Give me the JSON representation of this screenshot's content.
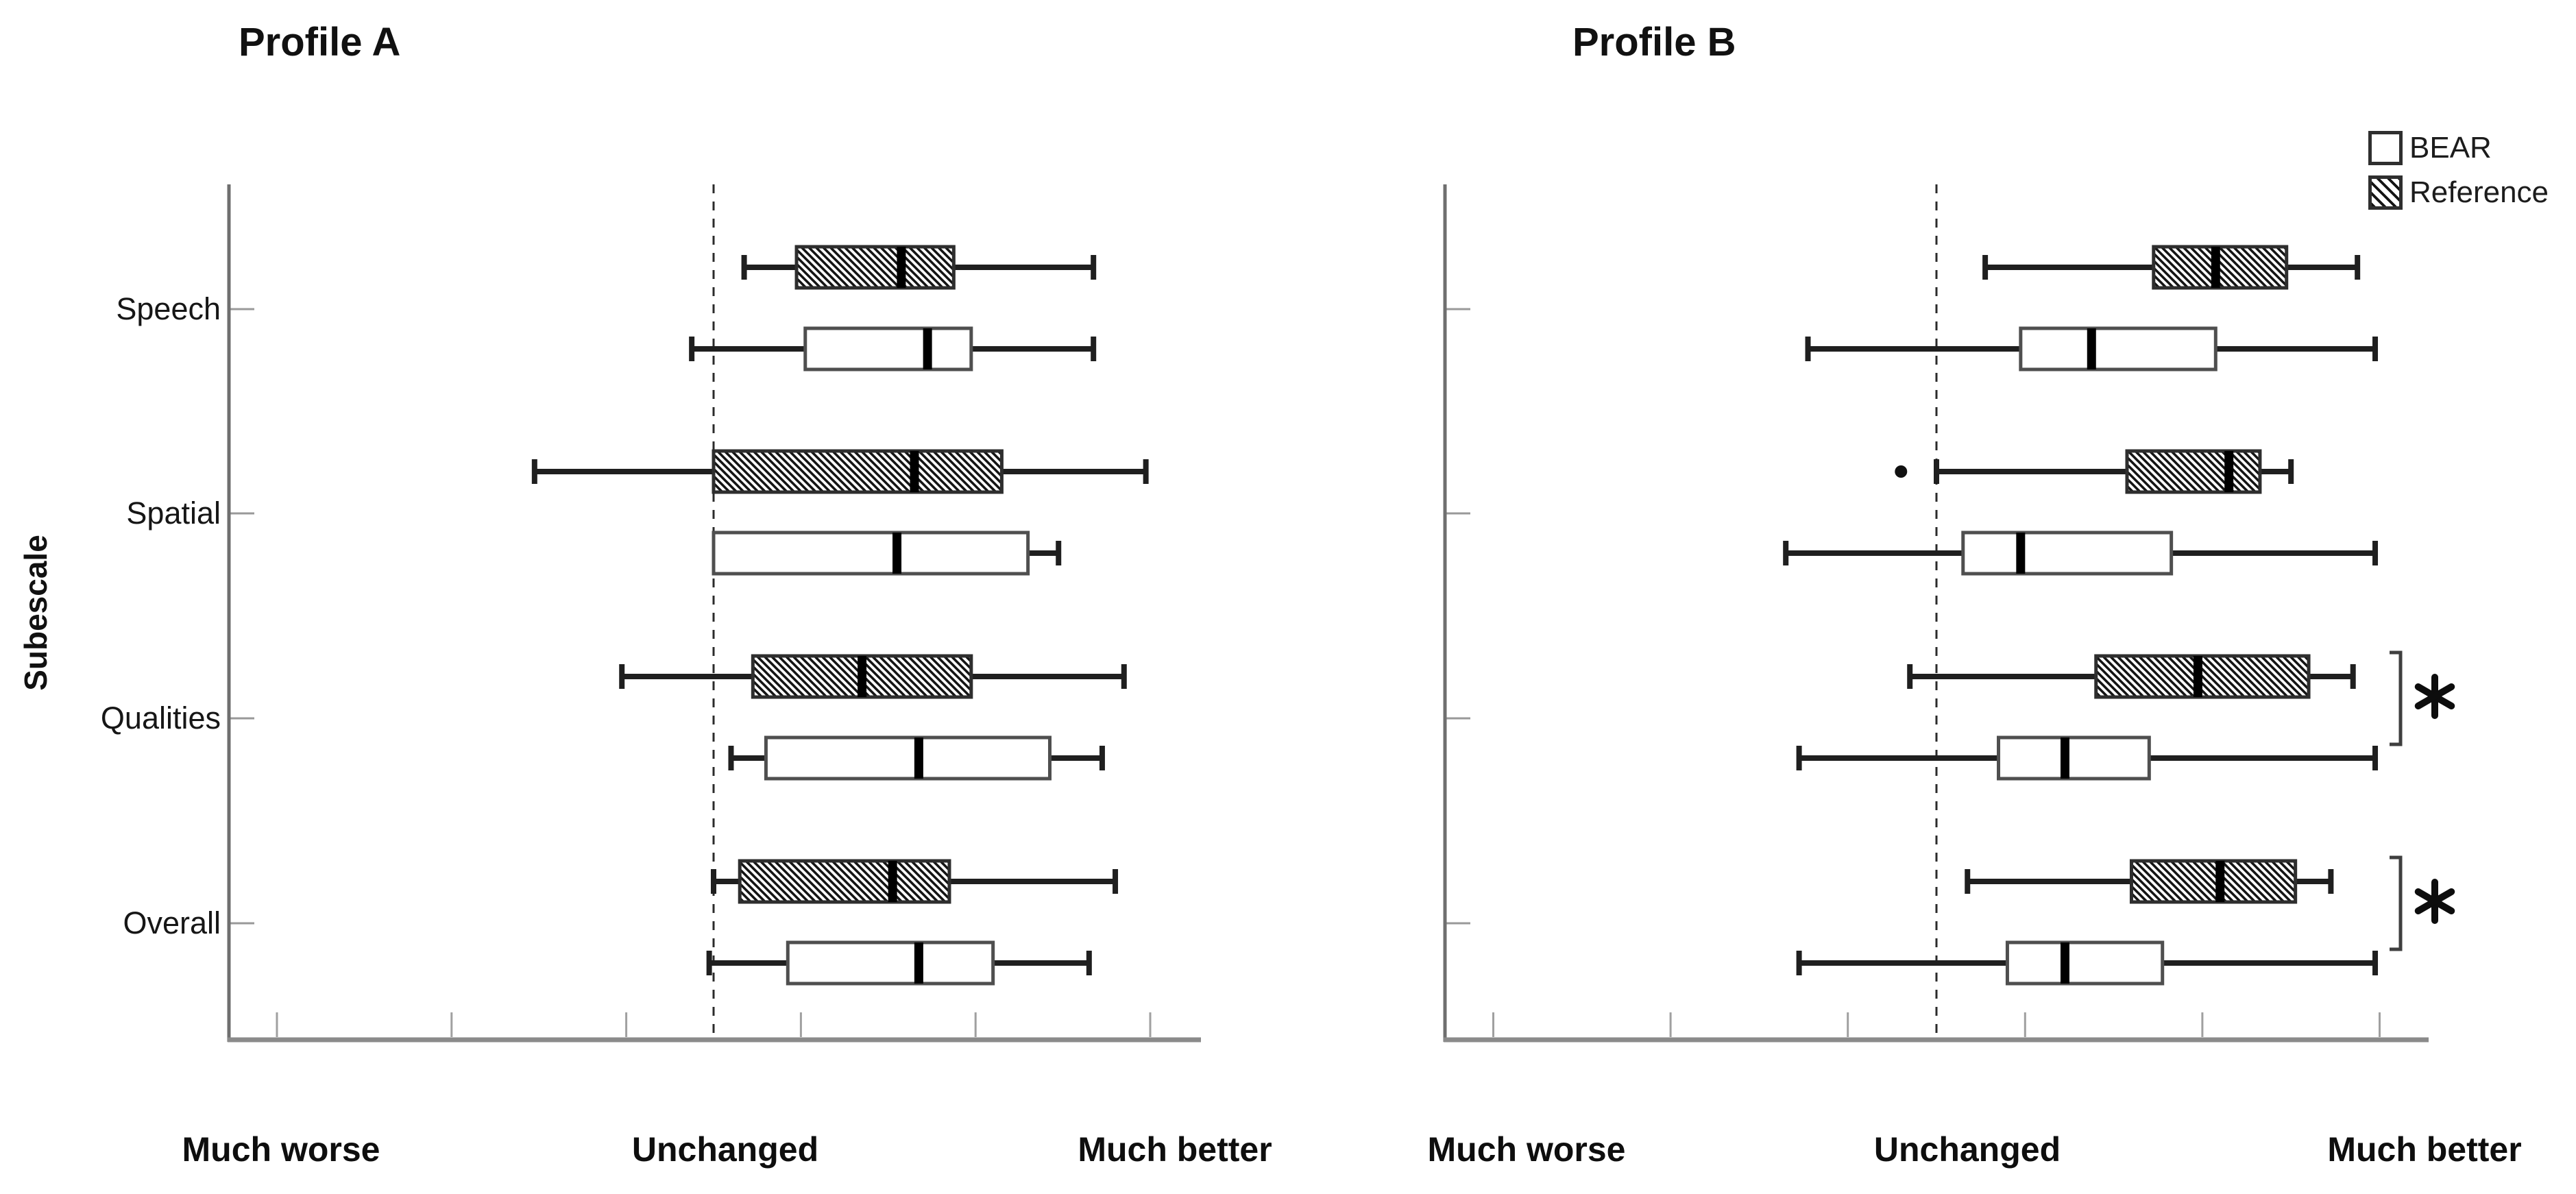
{
  "figure": {
    "background": "#ffffff"
  },
  "colors": {
    "axis_x": "#8a8a8a",
    "axis_y": "#6f6f6f",
    "tick": "#a0a0a0",
    "category_tick": "#999999",
    "reference_line": "#2b2b2b",
    "whisker": "#1f1f1f",
    "median": "#000000",
    "box_stroke_hatched": "#2e2e2e",
    "box_stroke_open": "#4f4f4f",
    "hatch": "#141414",
    "flier": "#111111",
    "significance": "#3f3f3f"
  },
  "legend": {
    "position": "top-right",
    "items": [
      {
        "label": "BEAR",
        "style": "open"
      },
      {
        "label": "Reference",
        "style": "hatched"
      }
    ]
  },
  "chart_data": [
    {
      "type": "boxplot",
      "panel_id": "A",
      "title": "Profile A",
      "orientation": "horizontal",
      "ylabel": "Subescale",
      "categories": [
        "Speech",
        "Spatial",
        "Qualities",
        "Overall"
      ],
      "row_order": [
        "Reference",
        "BEAR"
      ],
      "value_axis": {
        "min": -5.55,
        "max": 5.6,
        "ticks": [
          -5,
          -3,
          -1,
          1,
          3,
          5
        ],
        "reference_line": 0,
        "grid": false,
        "labels": [
          {
            "text": "Much worse",
            "at": -5
          },
          {
            "text": "Unchanged",
            "at": 0
          },
          {
            "text": "Much better",
            "at": 5
          }
        ]
      },
      "series": [
        {
          "name": "Reference",
          "style": "hatched",
          "position": "top",
          "boxes": [
            {
              "category": "Speech",
              "whislo": 0.35,
              "q1": 0.95,
              "med": 2.15,
              "q3": 2.75,
              "whishi": 4.35,
              "fliers": []
            },
            {
              "category": "Spatial",
              "whislo": -2.05,
              "q1": 0.0,
              "med": 2.3,
              "q3": 3.3,
              "whishi": 4.95,
              "fliers": []
            },
            {
              "category": "Qualities",
              "whislo": -1.05,
              "q1": 0.45,
              "med": 1.7,
              "q3": 2.95,
              "whishi": 4.7,
              "fliers": []
            },
            {
              "category": "Overall",
              "whislo": 0.0,
              "q1": 0.3,
              "med": 2.05,
              "q3": 2.7,
              "whishi": 4.6,
              "fliers": []
            }
          ]
        },
        {
          "name": "BEAR",
          "style": "open",
          "position": "bottom",
          "boxes": [
            {
              "category": "Speech",
              "whislo": -0.25,
              "q1": 1.05,
              "med": 2.45,
              "q3": 2.95,
              "whishi": 4.35,
              "fliers": []
            },
            {
              "category": "Spatial",
              "whislo": 0.0,
              "q1": 0.0,
              "med": 2.1,
              "q3": 3.6,
              "whishi": 3.95,
              "fliers": []
            },
            {
              "category": "Qualities",
              "whislo": 0.2,
              "q1": 0.6,
              "med": 2.35,
              "q3": 3.85,
              "whishi": 4.45,
              "fliers": []
            },
            {
              "category": "Overall",
              "whislo": -0.05,
              "q1": 0.85,
              "med": 2.35,
              "q3": 3.2,
              "whishi": 4.3,
              "fliers": []
            }
          ]
        }
      ],
      "significance": []
    },
    {
      "type": "boxplot",
      "panel_id": "B",
      "title": "Profile B",
      "orientation": "horizontal",
      "ylabel": "",
      "categories": [
        "Speech",
        "Spatial",
        "Qualities",
        "Overall"
      ],
      "row_order": [
        "Reference",
        "BEAR"
      ],
      "value_axis": {
        "min": -5.4,
        "max": 5.55,
        "ticks": [
          -5,
          -3,
          -1,
          1,
          3,
          5
        ],
        "reference_line": 0,
        "grid": false,
        "labels": [
          {
            "text": "Much worse",
            "at": -5
          },
          {
            "text": "Unchanged",
            "at": 0
          },
          {
            "text": "Much better",
            "at": 5
          }
        ]
      },
      "series": [
        {
          "name": "Reference",
          "style": "hatched",
          "position": "top",
          "boxes": [
            {
              "category": "Speech",
              "whislo": 0.55,
              "q1": 2.45,
              "med": 3.15,
              "q3": 3.95,
              "whishi": 4.75,
              "fliers": []
            },
            {
              "category": "Spatial",
              "whislo": 0.0,
              "q1": 2.15,
              "med": 3.3,
              "q3": 3.65,
              "whishi": 4.0,
              "fliers": [
                -0.4
              ]
            },
            {
              "category": "Qualities",
              "whislo": -0.3,
              "q1": 1.8,
              "med": 2.95,
              "q3": 4.2,
              "whishi": 4.7,
              "fliers": []
            },
            {
              "category": "Overall",
              "whislo": 0.35,
              "q1": 2.2,
              "med": 3.2,
              "q3": 4.05,
              "whishi": 4.45,
              "fliers": []
            }
          ]
        },
        {
          "name": "BEAR",
          "style": "open",
          "position": "bottom",
          "boxes": [
            {
              "category": "Speech",
              "whislo": -1.45,
              "q1": 0.95,
              "med": 1.75,
              "q3": 3.15,
              "whishi": 4.95,
              "fliers": []
            },
            {
              "category": "Spatial",
              "whislo": -1.7,
              "q1": 0.3,
              "med": 0.95,
              "q3": 2.65,
              "whishi": 4.95,
              "fliers": []
            },
            {
              "category": "Qualities",
              "whislo": -1.55,
              "q1": 0.7,
              "med": 1.45,
              "q3": 2.4,
              "whishi": 4.95,
              "fliers": []
            },
            {
              "category": "Overall",
              "whislo": -1.55,
              "q1": 0.8,
              "med": 1.45,
              "q3": 2.55,
              "whishi": 4.95,
              "fliers": []
            }
          ]
        }
      ],
      "significance": [
        {
          "category": "Qualities",
          "label": "*",
          "between": [
            "Reference",
            "BEAR"
          ]
        },
        {
          "category": "Overall",
          "label": "*",
          "between": [
            "Reference",
            "BEAR"
          ]
        }
      ]
    }
  ]
}
